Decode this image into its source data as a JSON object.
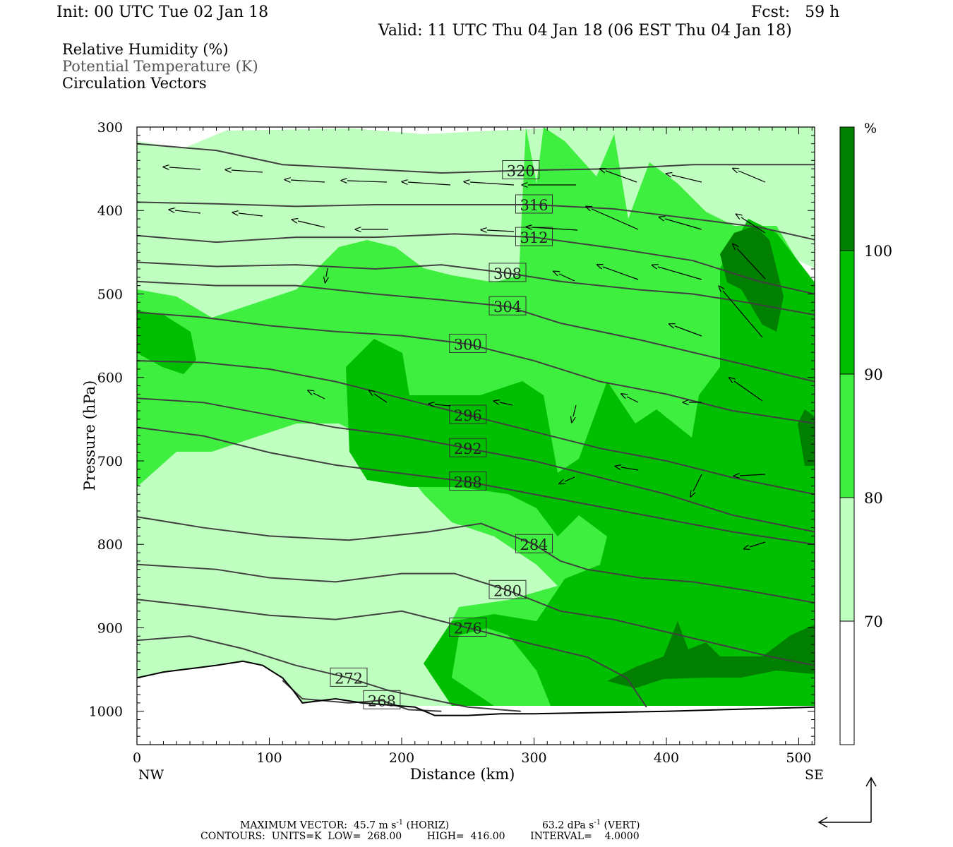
{
  "header": {
    "init": "Init: 00 UTC Tue 02 Jan 18",
    "fcst": "Fcst:   59 h",
    "valid": "Valid: 11 UTC Thu 04 Jan 18 (06 EST Thu 04 Jan 18)"
  },
  "fields": {
    "rh": "Relative Humidity (%)",
    "theta": "Potential Temperature (K)",
    "vectors": "Circulation Vectors"
  },
  "colors": {
    "white": "#ffffff",
    "light_green": "#bfffbf",
    "green": "#3fef3f",
    "mid_green": "#00bf00",
    "dark_green": "#007f00",
    "contour": "#404040"
  },
  "chart_data": {
    "type": "cross-section",
    "xlabel": "Distance (km)",
    "ylabel": "Pressure (hPa)",
    "xlim": [
      0,
      512
    ],
    "ylim": [
      1040,
      300
    ],
    "x_ticks": [
      "0",
      "100",
      "200",
      "300",
      "400",
      "500"
    ],
    "y_ticks": [
      "300",
      "400",
      "500",
      "600",
      "700",
      "800",
      "900",
      "1000"
    ],
    "left_end": "NW",
    "right_end": "SE",
    "colorbar": {
      "unit": "%",
      "levels": [
        "70",
        "80",
        "90",
        "100"
      ]
    },
    "theta_contours": [
      {
        "value": 268,
        "label": "268",
        "points": [
          [
            110,
            963
          ],
          [
            125,
            985
          ],
          [
            160,
            990
          ],
          [
            185,
            987
          ],
          [
            205,
            998
          ],
          [
            230,
            1000
          ]
        ]
      },
      {
        "value": 272,
        "label": "272",
        "points": [
          [
            0,
            915
          ],
          [
            40,
            910
          ],
          [
            80,
            925
          ],
          [
            120,
            945
          ],
          [
            160,
            960
          ],
          [
            190,
            975
          ],
          [
            220,
            985
          ],
          [
            250,
            995
          ],
          [
            290,
            1000
          ]
        ]
      },
      {
        "value": 276,
        "label": "276",
        "points": [
          [
            0,
            866
          ],
          [
            50,
            875
          ],
          [
            100,
            885
          ],
          [
            150,
            890
          ],
          [
            200,
            880
          ],
          [
            250,
            900
          ],
          [
            300,
            920
          ],
          [
            340,
            935
          ],
          [
            370,
            960
          ],
          [
            385,
            995
          ]
        ]
      },
      {
        "value": 280,
        "label": "280",
        "points": [
          [
            0,
            824
          ],
          [
            60,
            830
          ],
          [
            100,
            840
          ],
          [
            150,
            845
          ],
          [
            200,
            835
          ],
          [
            240,
            835
          ],
          [
            280,
            855
          ],
          [
            320,
            880
          ],
          [
            360,
            890
          ],
          [
            400,
            905
          ],
          [
            440,
            920
          ],
          [
            480,
            935
          ],
          [
            512,
            945
          ]
        ]
      },
      {
        "value": 284,
        "label": "284",
        "points": [
          [
            0,
            767
          ],
          [
            50,
            780
          ],
          [
            100,
            790
          ],
          [
            160,
            795
          ],
          [
            220,
            785
          ],
          [
            260,
            775
          ],
          [
            300,
            800
          ],
          [
            320,
            820
          ],
          [
            340,
            830
          ],
          [
            380,
            840
          ],
          [
            420,
            845
          ],
          [
            460,
            855
          ],
          [
            512,
            870
          ]
        ]
      },
      {
        "value": 288,
        "label": "288",
        "points": [
          [
            0,
            660
          ],
          [
            50,
            670
          ],
          [
            100,
            690
          ],
          [
            150,
            705
          ],
          [
            200,
            715
          ],
          [
            250,
            725
          ],
          [
            300,
            740
          ],
          [
            350,
            755
          ],
          [
            400,
            770
          ],
          [
            450,
            785
          ],
          [
            512,
            800
          ]
        ]
      },
      {
        "value": 292,
        "label": "292",
        "points": [
          [
            0,
            625
          ],
          [
            50,
            630
          ],
          [
            100,
            645
          ],
          [
            150,
            660
          ],
          [
            200,
            670
          ],
          [
            250,
            685
          ],
          [
            300,
            700
          ],
          [
            350,
            720
          ],
          [
            400,
            740
          ],
          [
            450,
            765
          ],
          [
            512,
            785
          ]
        ]
      },
      {
        "value": 296,
        "label": "296",
        "points": [
          [
            0,
            580
          ],
          [
            50,
            582
          ],
          [
            100,
            590
          ],
          [
            150,
            605
          ],
          [
            200,
            625
          ],
          [
            250,
            645
          ],
          [
            300,
            665
          ],
          [
            350,
            685
          ],
          [
            400,
            700
          ],
          [
            450,
            720
          ],
          [
            512,
            740
          ]
        ]
      },
      {
        "value": 300,
        "label": "300",
        "points": [
          [
            0,
            522
          ],
          [
            50,
            528
          ],
          [
            100,
            538
          ],
          [
            150,
            545
          ],
          [
            200,
            550
          ],
          [
            250,
            560
          ],
          [
            300,
            580
          ],
          [
            350,
            605
          ],
          [
            400,
            620
          ],
          [
            450,
            640
          ],
          [
            512,
            655
          ]
        ]
      },
      {
        "value": 304,
        "label": "304",
        "points": [
          [
            0,
            485
          ],
          [
            60,
            490
          ],
          [
            120,
            490
          ],
          [
            180,
            500
          ],
          [
            230,
            507
          ],
          [
            280,
            515
          ],
          [
            320,
            535
          ],
          [
            380,
            555
          ],
          [
            420,
            570
          ],
          [
            460,
            585
          ],
          [
            512,
            605
          ]
        ]
      },
      {
        "value": 308,
        "label": "308",
        "points": [
          [
            0,
            462
          ],
          [
            60,
            467
          ],
          [
            120,
            465
          ],
          [
            180,
            470
          ],
          [
            230,
            465
          ],
          [
            280,
            475
          ],
          [
            320,
            485
          ],
          [
            380,
            495
          ],
          [
            420,
            500
          ],
          [
            460,
            510
          ],
          [
            512,
            525
          ]
        ]
      },
      {
        "value": 312,
        "label": "312",
        "points": [
          [
            0,
            430
          ],
          [
            60,
            438
          ],
          [
            120,
            432
          ],
          [
            180,
            432
          ],
          [
            240,
            428
          ],
          [
            300,
            432
          ],
          [
            360,
            445
          ],
          [
            420,
            460
          ],
          [
            470,
            485
          ],
          [
            512,
            500
          ]
        ]
      },
      {
        "value": 316,
        "label": "316",
        "points": [
          [
            0,
            390
          ],
          [
            60,
            392
          ],
          [
            120,
            395
          ],
          [
            180,
            393
          ],
          [
            240,
            393
          ],
          [
            300,
            393
          ],
          [
            360,
            398
          ],
          [
            420,
            410
          ],
          [
            470,
            420
          ],
          [
            512,
            435
          ]
        ]
      },
      {
        "value": 320,
        "label": "320",
        "points": [
          [
            0,
            320
          ],
          [
            60,
            328
          ],
          [
            110,
            345
          ],
          [
            170,
            350
          ],
          [
            230,
            355
          ],
          [
            290,
            352
          ],
          [
            360,
            350
          ],
          [
            420,
            345
          ],
          [
            470,
            345
          ],
          [
            512,
            345
          ]
        ]
      }
    ],
    "terrain_surface_hpa": [
      [
        0,
        960
      ],
      [
        20,
        953
      ],
      [
        45,
        948
      ],
      [
        60,
        945
      ],
      [
        80,
        940
      ],
      [
        95,
        945
      ],
      [
        110,
        960
      ],
      [
        118,
        975
      ],
      [
        125,
        990
      ],
      [
        150,
        985
      ],
      [
        170,
        990
      ],
      [
        210,
        995
      ],
      [
        225,
        1005
      ],
      [
        250,
        1005
      ],
      [
        275,
        1003
      ],
      [
        300,
        1003
      ],
      [
        400,
        1000
      ],
      [
        512,
        995
      ]
    ],
    "max_vector_horiz": "45.7",
    "max_vector_vert": "63.2"
  },
  "footer": {
    "max_vector_prefix": "MAXIMUM VECTOR:  45.7 m s",
    "horiz_unit": " (HORIZ)",
    "vert_prefix": "63.2 dPa s",
    "vert_unit": " (VERT)",
    "contours": "CONTOURS:  UNITS=K  LOW=  268.00        HIGH=  416.00        INTERVAL=    4.0000"
  }
}
